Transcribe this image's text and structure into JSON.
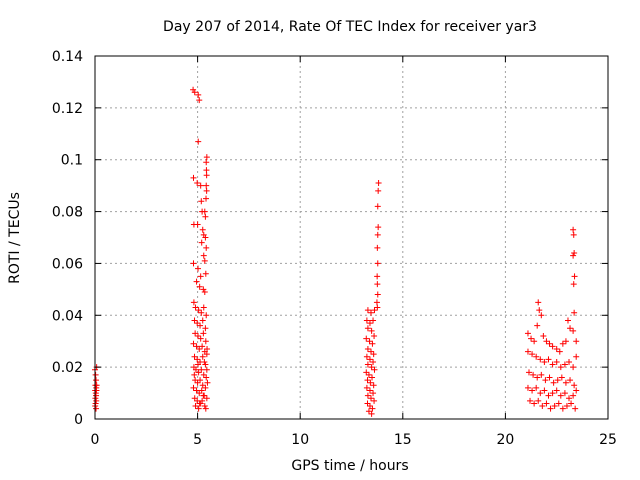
{
  "chart_data": {
    "type": "scatter",
    "title": "Day 207 of 2014, Rate Of TEC Index for receiver yar3",
    "xlabel": "GPS time / hours",
    "ylabel": "ROTI / TECUs",
    "xlim": [
      0,
      25
    ],
    "ylim": [
      0,
      0.14
    ],
    "xticks": [
      0,
      5,
      10,
      15,
      20,
      25
    ],
    "yticks": [
      0,
      0.02,
      0.04,
      0.06,
      0.08,
      0.1,
      0.12,
      0.14
    ],
    "xtick_labels": [
      "0",
      "5",
      "10",
      "15",
      "20",
      "25"
    ],
    "ytick_labels": [
      "0",
      "0.02",
      "0.04",
      "0.06",
      "0.08",
      "0.1",
      "0.12",
      "0.14"
    ],
    "grid": true,
    "marker": "plus",
    "series": [
      {
        "name": "ROTI",
        "color": "#ff0000",
        "points": [
          [
            0.0,
            0.019
          ],
          [
            0.03,
            0.017
          ],
          [
            0.05,
            0.015
          ],
          [
            0.02,
            0.013
          ],
          [
            0.06,
            0.012
          ],
          [
            0.01,
            0.011
          ],
          [
            0.04,
            0.01
          ],
          [
            0.05,
            0.009
          ],
          [
            0.02,
            0.008
          ],
          [
            0.06,
            0.007
          ],
          [
            0.03,
            0.006
          ],
          [
            0.01,
            0.005
          ],
          [
            0.05,
            0.004
          ],
          [
            0.08,
            0.02
          ],
          [
            0.08,
            0.013
          ],
          [
            0.07,
            0.011
          ],
          [
            4.78,
            0.127
          ],
          [
            4.86,
            0.126
          ],
          [
            5.03,
            0.125
          ],
          [
            5.08,
            0.123
          ],
          [
            5.03,
            0.107
          ],
          [
            4.8,
            0.093
          ],
          [
            4.98,
            0.091
          ],
          [
            5.15,
            0.09
          ],
          [
            5.42,
            0.099
          ],
          [
            5.45,
            0.101
          ],
          [
            5.43,
            0.096
          ],
          [
            5.44,
            0.094
          ],
          [
            5.42,
            0.09
          ],
          [
            5.44,
            0.088
          ],
          [
            5.41,
            0.085
          ],
          [
            5.18,
            0.084
          ],
          [
            5.22,
            0.08
          ],
          [
            5.35,
            0.08
          ],
          [
            5.38,
            0.078
          ],
          [
            4.82,
            0.075
          ],
          [
            5.0,
            0.075
          ],
          [
            5.25,
            0.073
          ],
          [
            5.3,
            0.071
          ],
          [
            5.38,
            0.07
          ],
          [
            5.2,
            0.068
          ],
          [
            5.42,
            0.066
          ],
          [
            5.3,
            0.063
          ],
          [
            4.8,
            0.06
          ],
          [
            5.35,
            0.061
          ],
          [
            5.02,
            0.058
          ],
          [
            5.4,
            0.056
          ],
          [
            5.15,
            0.055
          ],
          [
            4.95,
            0.053
          ],
          [
            5.1,
            0.051
          ],
          [
            5.28,
            0.05
          ],
          [
            5.35,
            0.049
          ],
          [
            4.82,
            0.045
          ],
          [
            4.9,
            0.043
          ],
          [
            5.05,
            0.042
          ],
          [
            5.18,
            0.041
          ],
          [
            5.3,
            0.043
          ],
          [
            5.42,
            0.04
          ],
          [
            4.85,
            0.038
          ],
          [
            4.98,
            0.037
          ],
          [
            5.12,
            0.036
          ],
          [
            5.25,
            0.038
          ],
          [
            5.38,
            0.035
          ],
          [
            4.88,
            0.033
          ],
          [
            5.02,
            0.032
          ],
          [
            5.15,
            0.031
          ],
          [
            5.28,
            0.033
          ],
          [
            5.4,
            0.03
          ],
          [
            4.8,
            0.029
          ],
          [
            4.95,
            0.028
          ],
          [
            5.08,
            0.027
          ],
          [
            5.22,
            0.028
          ],
          [
            5.35,
            0.026
          ],
          [
            5.45,
            0.025
          ],
          [
            4.85,
            0.024
          ],
          [
            4.98,
            0.023
          ],
          [
            5.12,
            0.022
          ],
          [
            5.25,
            0.024
          ],
          [
            5.38,
            0.021
          ],
          [
            4.82,
            0.02
          ],
          [
            4.92,
            0.019
          ],
          [
            5.05,
            0.018
          ],
          [
            5.18,
            0.019
          ],
          [
            5.3,
            0.017
          ],
          [
            5.42,
            0.016
          ],
          [
            4.88,
            0.015
          ],
          [
            5.0,
            0.014
          ],
          [
            5.12,
            0.015
          ],
          [
            5.25,
            0.013
          ],
          [
            5.38,
            0.012
          ],
          [
            4.8,
            0.012
          ],
          [
            4.95,
            0.011
          ],
          [
            5.08,
            0.01
          ],
          [
            5.2,
            0.011
          ],
          [
            5.32,
            0.009
          ],
          [
            5.45,
            0.008
          ],
          [
            4.86,
            0.008
          ],
          [
            4.98,
            0.007
          ],
          [
            5.1,
            0.006
          ],
          [
            5.22,
            0.007
          ],
          [
            5.35,
            0.005
          ],
          [
            5.4,
            0.004
          ],
          [
            4.9,
            0.005
          ],
          [
            5.05,
            0.004
          ],
          [
            5.15,
            0.006
          ],
          [
            5.28,
            0.009
          ],
          [
            4.84,
            0.017
          ],
          [
            5.02,
            0.021
          ],
          [
            5.33,
            0.022
          ],
          [
            5.45,
            0.019
          ],
          [
            5.48,
            0.014
          ],
          [
            5.46,
            0.027
          ],
          [
            13.3,
            0.042
          ],
          [
            13.45,
            0.041
          ],
          [
            13.62,
            0.042
          ],
          [
            13.25,
            0.038
          ],
          [
            13.4,
            0.037
          ],
          [
            13.55,
            0.038
          ],
          [
            13.3,
            0.035
          ],
          [
            13.48,
            0.034
          ],
          [
            13.6,
            0.032
          ],
          [
            13.22,
            0.031
          ],
          [
            13.38,
            0.03
          ],
          [
            13.52,
            0.029
          ],
          [
            13.3,
            0.027
          ],
          [
            13.45,
            0.026
          ],
          [
            13.58,
            0.025
          ],
          [
            13.25,
            0.024
          ],
          [
            13.4,
            0.023
          ],
          [
            13.55,
            0.022
          ],
          [
            13.3,
            0.021
          ],
          [
            13.48,
            0.02
          ],
          [
            13.62,
            0.019
          ],
          [
            13.22,
            0.018
          ],
          [
            13.35,
            0.017
          ],
          [
            13.5,
            0.016
          ],
          [
            13.28,
            0.015
          ],
          [
            13.42,
            0.014
          ],
          [
            13.58,
            0.013
          ],
          [
            13.25,
            0.012
          ],
          [
            13.4,
            0.011
          ],
          [
            13.55,
            0.01
          ],
          [
            13.3,
            0.009
          ],
          [
            13.45,
            0.008
          ],
          [
            13.6,
            0.007
          ],
          [
            13.28,
            0.006
          ],
          [
            13.4,
            0.005
          ],
          [
            13.52,
            0.004
          ],
          [
            13.35,
            0.003
          ],
          [
            13.48,
            0.002
          ],
          [
            13.82,
            0.091
          ],
          [
            13.8,
            0.088
          ],
          [
            13.78,
            0.082
          ],
          [
            13.8,
            0.074
          ],
          [
            13.78,
            0.071
          ],
          [
            13.76,
            0.066
          ],
          [
            13.78,
            0.06
          ],
          [
            13.75,
            0.055
          ],
          [
            13.76,
            0.052
          ],
          [
            13.78,
            0.048
          ],
          [
            13.74,
            0.045
          ],
          [
            13.76,
            0.043
          ],
          [
            21.1,
            0.033
          ],
          [
            21.25,
            0.031
          ],
          [
            21.4,
            0.03
          ],
          [
            21.55,
            0.036
          ],
          [
            21.6,
            0.045
          ],
          [
            21.65,
            0.042
          ],
          [
            21.75,
            0.04
          ],
          [
            21.85,
            0.032
          ],
          [
            22.0,
            0.03
          ],
          [
            22.15,
            0.029
          ],
          [
            22.3,
            0.028
          ],
          [
            22.5,
            0.027
          ],
          [
            22.65,
            0.026
          ],
          [
            22.8,
            0.029
          ],
          [
            22.95,
            0.03
          ],
          [
            23.05,
            0.038
          ],
          [
            23.15,
            0.035
          ],
          [
            23.3,
            0.034
          ],
          [
            23.45,
            0.03
          ],
          [
            21.1,
            0.026
          ],
          [
            21.3,
            0.025
          ],
          [
            21.5,
            0.024
          ],
          [
            21.7,
            0.023
          ],
          [
            21.9,
            0.022
          ],
          [
            22.1,
            0.023
          ],
          [
            22.3,
            0.021
          ],
          [
            22.5,
            0.022
          ],
          [
            22.7,
            0.02
          ],
          [
            22.9,
            0.021
          ],
          [
            23.1,
            0.022
          ],
          [
            23.3,
            0.02
          ],
          [
            23.45,
            0.024
          ],
          [
            21.15,
            0.018
          ],
          [
            21.35,
            0.017
          ],
          [
            21.55,
            0.016
          ],
          [
            21.75,
            0.017
          ],
          [
            21.95,
            0.015
          ],
          [
            22.15,
            0.016
          ],
          [
            22.35,
            0.014
          ],
          [
            22.55,
            0.015
          ],
          [
            22.75,
            0.016
          ],
          [
            22.95,
            0.014
          ],
          [
            23.15,
            0.015
          ],
          [
            23.35,
            0.013
          ],
          [
            21.1,
            0.012
          ],
          [
            21.3,
            0.011
          ],
          [
            21.5,
            0.012
          ],
          [
            21.7,
            0.01
          ],
          [
            21.9,
            0.011
          ],
          [
            22.1,
            0.009
          ],
          [
            22.3,
            0.01
          ],
          [
            22.5,
            0.011
          ],
          [
            22.7,
            0.009
          ],
          [
            22.9,
            0.01
          ],
          [
            23.1,
            0.008
          ],
          [
            23.3,
            0.009
          ],
          [
            23.45,
            0.011
          ],
          [
            21.2,
            0.007
          ],
          [
            21.4,
            0.006
          ],
          [
            21.6,
            0.007
          ],
          [
            21.8,
            0.005
          ],
          [
            22.0,
            0.006
          ],
          [
            22.2,
            0.004
          ],
          [
            22.4,
            0.005
          ],
          [
            22.6,
            0.006
          ],
          [
            22.8,
            0.004
          ],
          [
            23.0,
            0.005
          ],
          [
            23.2,
            0.006
          ],
          [
            23.4,
            0.004
          ],
          [
            23.3,
            0.073
          ],
          [
            23.33,
            0.071
          ],
          [
            23.35,
            0.064
          ],
          [
            23.3,
            0.063
          ],
          [
            23.37,
            0.055
          ],
          [
            23.33,
            0.052
          ],
          [
            23.35,
            0.041
          ]
        ]
      }
    ]
  }
}
